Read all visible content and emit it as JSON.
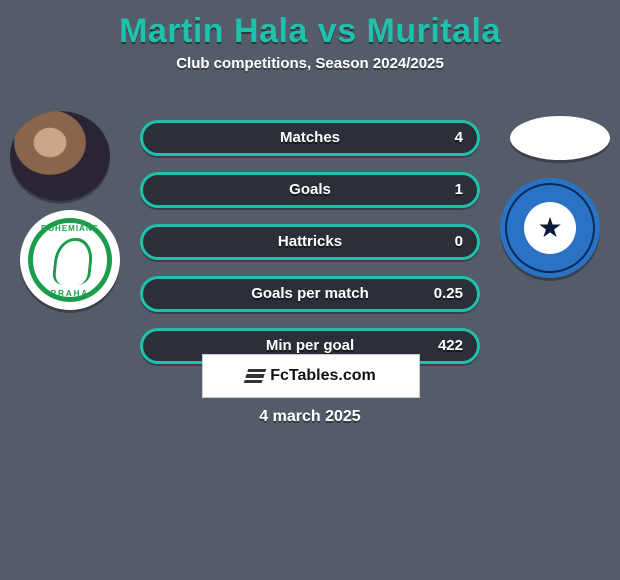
{
  "title": "Martin Hala vs Muritala",
  "subtitle": "Club competitions, Season 2024/2025",
  "date": "4 march 2025",
  "branding": {
    "site": "FcTables.com"
  },
  "colors": {
    "background": "#545c69",
    "accent": "#1fc1ad",
    "bar_bg": "#2a2f38",
    "club_left_green": "#1a9c4b",
    "club_right_blue": "#2a72c4",
    "club_right_navy": "#0a1b3a"
  },
  "left_club_text": {
    "top": "BOHEMIANS",
    "bottom": "PRAHA"
  },
  "stats": [
    {
      "label": "Matches",
      "value": "4"
    },
    {
      "label": "Goals",
      "value": "1"
    },
    {
      "label": "Hattricks",
      "value": "0"
    },
    {
      "label": "Goals per match",
      "value": "0.25"
    },
    {
      "label": "Min per goal",
      "value": "422"
    }
  ]
}
